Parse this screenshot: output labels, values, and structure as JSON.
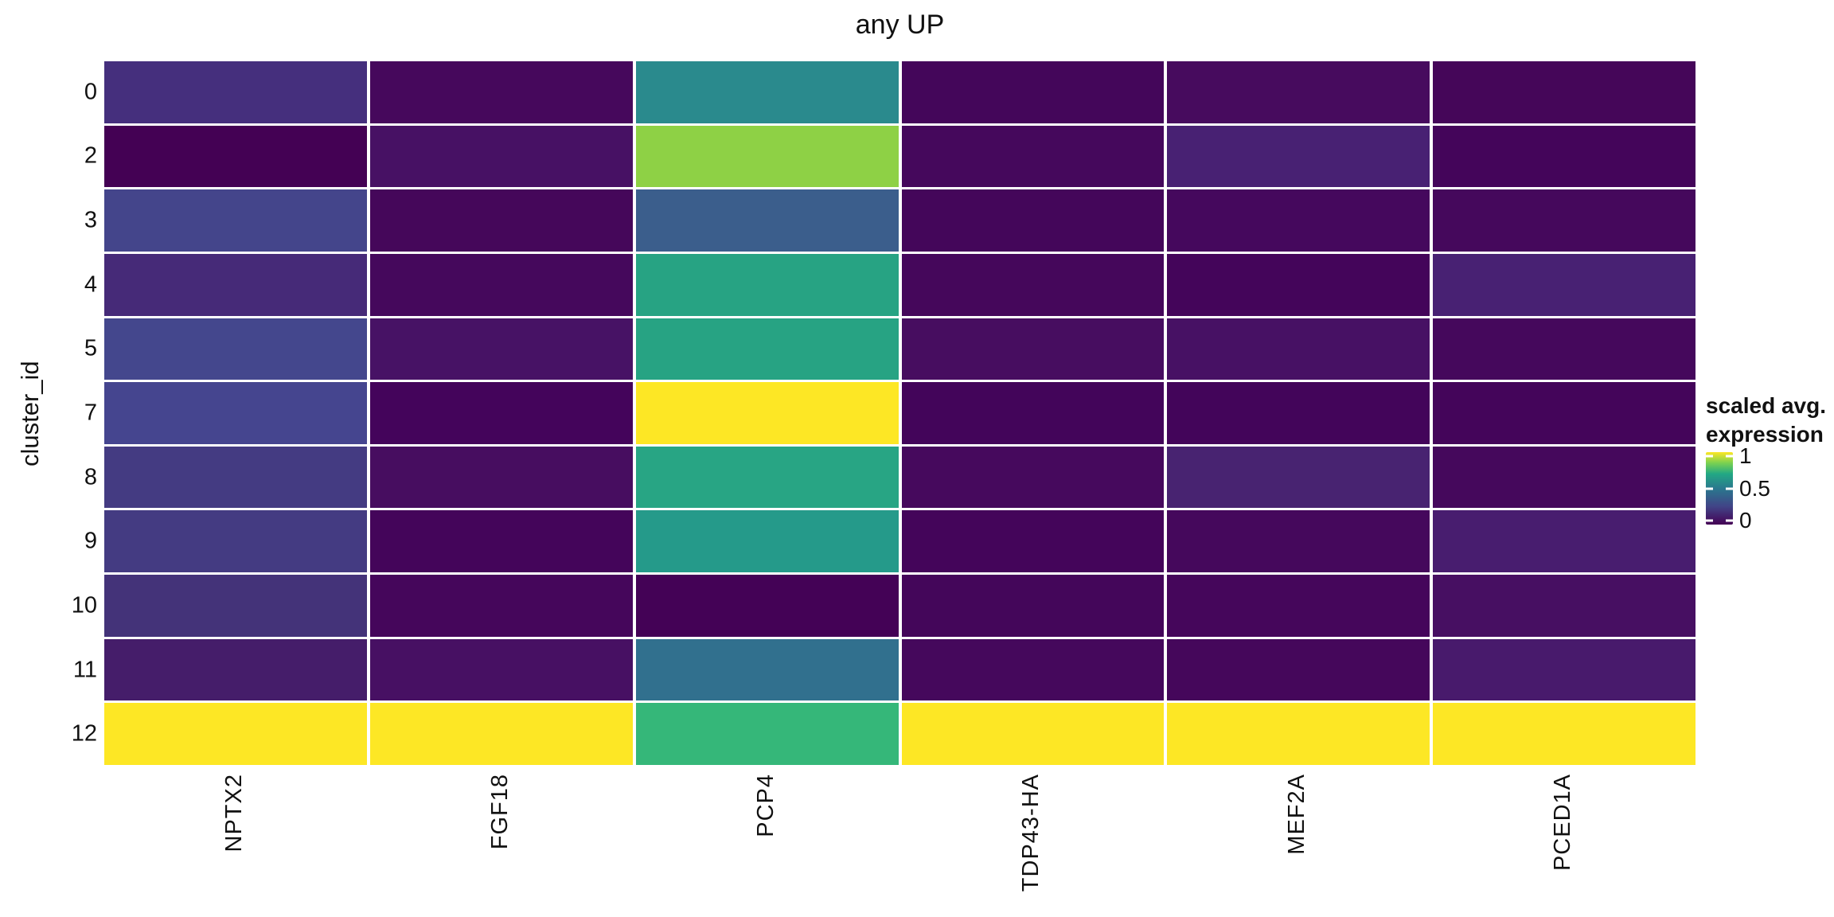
{
  "title": "any UP",
  "y_axis_label": "cluster_id",
  "legend": {
    "title_line1": "scaled avg.",
    "title_line2": "expression",
    "tick_labels": [
      "1",
      "0.5",
      "0"
    ],
    "tick_positions_pct": [
      5,
      50,
      95
    ]
  },
  "chart_data": {
    "type": "heatmap",
    "title": "any UP",
    "xlabel": "",
    "ylabel": "cluster_id",
    "colorscale": "viridis",
    "legend_title": "scaled avg. expression",
    "legend_ticks": [
      1,
      0.5,
      0
    ],
    "value_range": [
      0,
      1
    ],
    "x_categories": [
      "NPTX2",
      "FGF18",
      "PCP4",
      "TDP43-HA",
      "MEF2A",
      "PCED1A"
    ],
    "y_categories": [
      "0",
      "2",
      "3",
      "4",
      "5",
      "7",
      "8",
      "9",
      "10",
      "11",
      "12"
    ],
    "series": [
      {
        "name": "NPTX2",
        "values": [
          0.12,
          0.0,
          0.19,
          0.1,
          0.2,
          0.2,
          0.16,
          0.16,
          0.13,
          0.07,
          1.0
        ],
        "colors": [
          "#452f7d",
          "#440154",
          "#44458b",
          "#462a78",
          "#44478d",
          "#45458f",
          "#443b82",
          "#443b82",
          "#443379",
          "#451d6a",
          "#fde725"
        ]
      },
      {
        "name": "FGF18",
        "values": [
          0.02,
          0.05,
          0.02,
          0.02,
          0.05,
          0.01,
          0.04,
          0.01,
          0.02,
          0.04,
          1.0
        ],
        "colors": [
          "#46085c",
          "#471164",
          "#45075a",
          "#45085c",
          "#471265",
          "#44045b",
          "#470d60",
          "#44055a",
          "#45065b",
          "#471063",
          "#fde725"
        ]
      },
      {
        "name": "PCP4",
        "values": [
          0.44,
          0.76,
          0.26,
          0.53,
          0.53,
          1.0,
          0.54,
          0.49,
          0.01,
          0.33,
          0.6
        ],
        "colors": [
          "#2a8a8d",
          "#8ed145",
          "#3b5e8c",
          "#27a383",
          "#27a383",
          "#fde725",
          "#28a584",
          "#259a8a",
          "#440256",
          "#31708e",
          "#35b779"
        ]
      },
      {
        "name": "TDP43-HA",
        "values": [
          0.01,
          0.02,
          0.01,
          0.02,
          0.03,
          0.01,
          0.02,
          0.01,
          0.01,
          0.02,
          1.0
        ],
        "colors": [
          "#44065a",
          "#45085c",
          "#44065a",
          "#45075b",
          "#470d60",
          "#43055a",
          "#46095d",
          "#44055a",
          "#44065a",
          "#45085c",
          "#fde725"
        ]
      },
      {
        "name": "MEF2A",
        "values": [
          0.03,
          0.08,
          0.02,
          0.01,
          0.05,
          0.01,
          0.08,
          0.02,
          0.02,
          0.02,
          1.0
        ],
        "colors": [
          "#470b5e",
          "#482173",
          "#45085d",
          "#44055a",
          "#471164",
          "#43055a",
          "#482371",
          "#45085c",
          "#45065b",
          "#45075b",
          "#fde725"
        ]
      },
      {
        "name": "PCED1A",
        "values": [
          0.01,
          0.01,
          0.02,
          0.08,
          0.02,
          0.01,
          0.02,
          0.07,
          0.04,
          0.06,
          1.0
        ],
        "colors": [
          "#450659",
          "#44055a",
          "#45085c",
          "#482173",
          "#45085c",
          "#44055a",
          "#45085c",
          "#481d6f",
          "#470f62",
          "#481a6c",
          "#fde725"
        ]
      }
    ]
  },
  "layout_hints": {
    "grid_gaps": "white",
    "legend_position": "right",
    "x_tick_rotation_deg": 90,
    "axis_lines": "none"
  }
}
